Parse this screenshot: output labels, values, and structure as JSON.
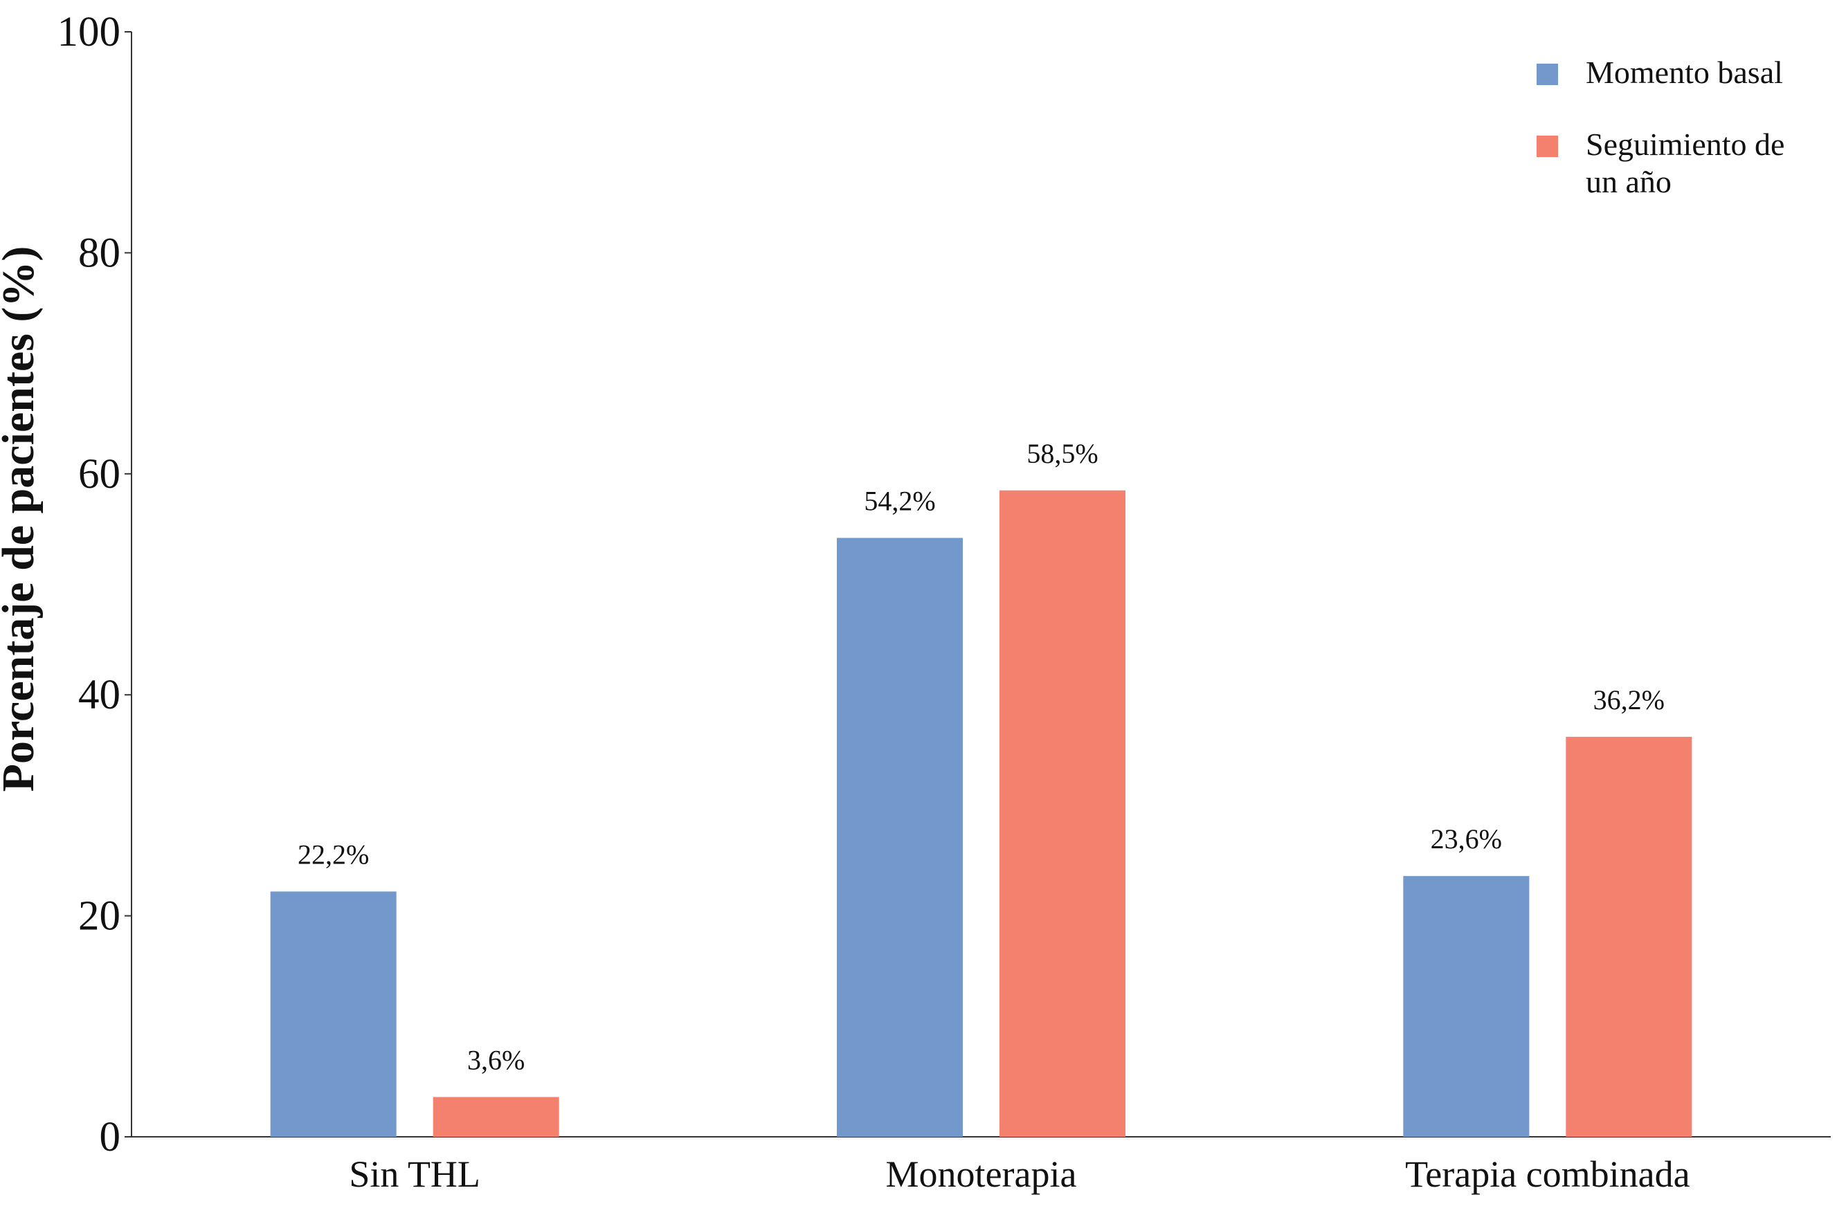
{
  "chart_data": {
    "type": "bar",
    "y_label": "Porcentaje de pacientes (%)",
    "categories": [
      "Sin THL",
      "Monoterapia",
      "Terapia combinada"
    ],
    "series": [
      {
        "name": "Momento basal",
        "color": "#7399cc",
        "values": [
          22.2,
          54.2,
          23.6
        ],
        "value_labels": [
          "22,2%",
          "54,2%",
          "23,6%"
        ]
      },
      {
        "name": "Seguimiento de un año",
        "color": "#f4806e",
        "values": [
          3.6,
          58.5,
          36.2
        ],
        "value_labels": [
          "3,6%",
          "58,5%",
          "36,2%"
        ]
      }
    ],
    "ylim": [
      0,
      100
    ],
    "yticks": [
      0,
      20,
      40,
      60,
      80,
      100
    ],
    "grid": false,
    "legend": "top-right"
  }
}
